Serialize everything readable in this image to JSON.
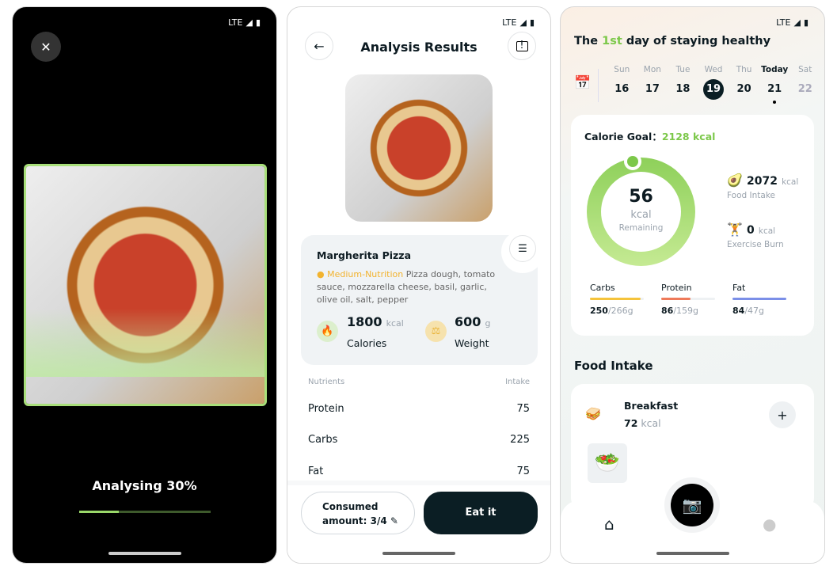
{
  "status": {
    "network": "LTE"
  },
  "scan": {
    "progress_label": "Analysing 30%",
    "progress": 0.3
  },
  "analysis": {
    "title": "Analysis Results",
    "food_name": "Margherita Pizza",
    "nutrition_level": "Medium-Nutrition",
    "ingredients": "Pizza dough, tomato sauce, mozzarella cheese, basil, garlic, olive oil, salt, pepper",
    "calories": {
      "value": "1800",
      "unit": "kcal",
      "label": "Calories"
    },
    "weight": {
      "value": "600",
      "unit": "g",
      "label": "Weight"
    },
    "table_headers": [
      "Nutrients",
      "Intake"
    ],
    "nutrients": [
      {
        "name": "Protein",
        "value": "75"
      },
      {
        "name": "Carbs",
        "value": "225"
      },
      {
        "name": "Fat",
        "value": "75"
      }
    ],
    "consumed_line1": "Consumed",
    "consumed_line2": "amount: 3/4",
    "eat_label": "Eat it",
    "colors": {
      "accent": "#f2b32f",
      "dark": "#0b1e24"
    }
  },
  "home": {
    "title_pre": "The ",
    "title_hl": "1st",
    "title_post": " day of staying healthy",
    "days": [
      {
        "d": "Sun",
        "n": "16"
      },
      {
        "d": "Mon",
        "n": "17"
      },
      {
        "d": "Tue",
        "n": "18"
      },
      {
        "d": "Wed",
        "n": "19"
      },
      {
        "d": "Thu",
        "n": "20"
      },
      {
        "d": "Today",
        "n": "21"
      },
      {
        "d": "Sat",
        "n": "22"
      }
    ],
    "goal_label": "Calorie Goal：",
    "goal_value": "2128 kcal",
    "remaining": "56",
    "remaining_unit": "kcal",
    "remaining_label": "Remaining",
    "intake": {
      "value": "2072",
      "unit": "kcal",
      "label": "Food Intake"
    },
    "burn": {
      "value": "0",
      "unit": "kcal",
      "label": "Exercise Burn"
    },
    "macros": [
      {
        "name": "Carbs",
        "cur": "250",
        "goal": "/266g",
        "pct": 94,
        "color": "#f5c33b"
      },
      {
        "name": "Protein",
        "cur": "86",
        "goal": "/159g",
        "pct": 54,
        "color": "#ef7a5a"
      },
      {
        "name": "Fat",
        "cur": "84",
        "goal": "/47g",
        "pct": 100,
        "color": "#7b8fe8"
      }
    ],
    "section": "Food Intake",
    "meal": {
      "name": "Breakfast",
      "value": "72",
      "unit": "kcal"
    },
    "colors": {
      "green": "#7cc84a"
    }
  }
}
